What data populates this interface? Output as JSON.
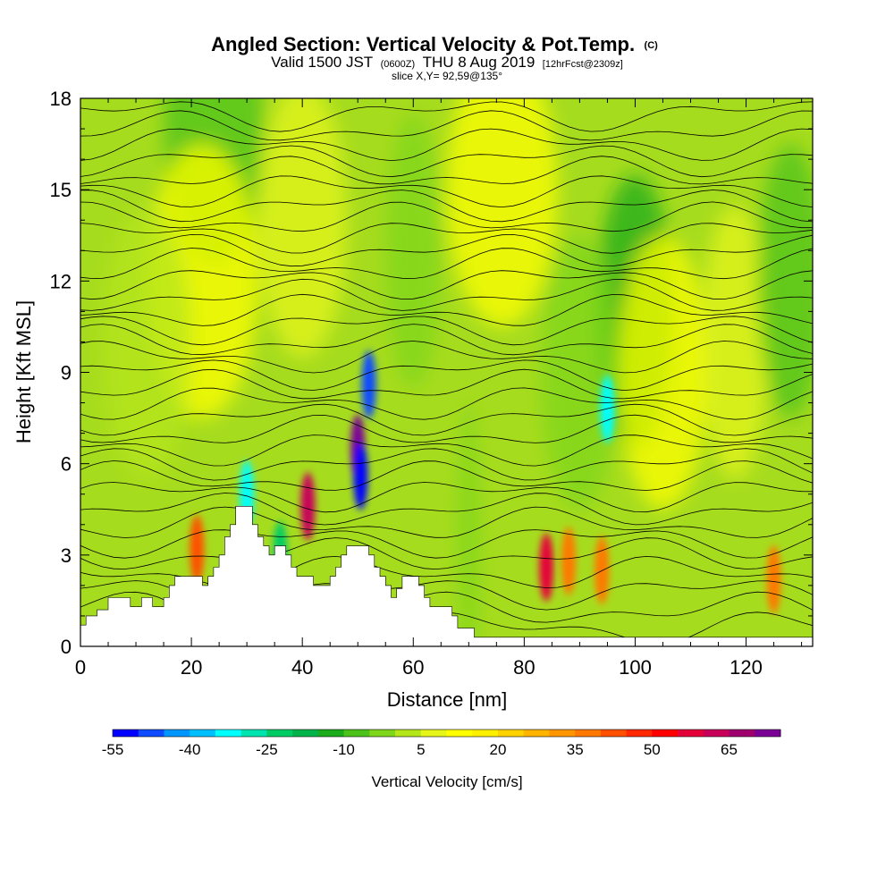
{
  "header": {
    "title": "Angled Section: Vertical Velocity & Pot.Temp.",
    "title_suffix": "(C)",
    "valid_prefix": "Valid 1500 JST",
    "valid_zulu": "(0600Z)",
    "valid_date": "THU 8 Aug 2019",
    "forecast_note": "[12hrFcst@2309z]",
    "slice_info": "slice X,Y= 92,59@135°"
  },
  "chart_data": {
    "type": "heatmap",
    "xlabel": "Distance [nm]",
    "ylabel": "Height [Kft MSL]",
    "xlim": [
      0,
      132
    ],
    "ylim": [
      0,
      18
    ],
    "x_ticks": [
      0,
      20,
      40,
      60,
      80,
      100,
      120
    ],
    "y_ticks": [
      0,
      3,
      6,
      9,
      12,
      15,
      18
    ],
    "grid": false,
    "colorbar": {
      "label": "Vertical Velocity [cm/s]",
      "min": -55,
      "step": 5,
      "tick_labels": [
        "-55",
        "-40",
        "-25",
        "-10",
        "5",
        "20",
        "35",
        "50",
        "65"
      ],
      "colors": [
        "#0000ff",
        "#0f4cff",
        "#0096ff",
        "#00bfff",
        "#00ffff",
        "#00e5b0",
        "#00cc66",
        "#00b44a",
        "#1bab1b",
        "#4cc21a",
        "#7fd61a",
        "#b5e61a",
        "#e6f51a",
        "#ffff00",
        "#fff000",
        "#ffd200",
        "#ffb400",
        "#ff9600",
        "#ff7800",
        "#ff5000",
        "#ff2800",
        "#ff0000",
        "#e6003a",
        "#c8005a",
        "#a0006e",
        "#7a0096"
      ]
    },
    "terrain_kft": [
      [
        0,
        0.7
      ],
      [
        1,
        0.7
      ],
      [
        1,
        1.0
      ],
      [
        3,
        1.0
      ],
      [
        3,
        1.2
      ],
      [
        5,
        1.2
      ],
      [
        5,
        1.6
      ],
      [
        9,
        1.6
      ],
      [
        9,
        1.3
      ],
      [
        11,
        1.3
      ],
      [
        11,
        1.6
      ],
      [
        13,
        1.6
      ],
      [
        13,
        1.3
      ],
      [
        15,
        1.3
      ],
      [
        15,
        1.6
      ],
      [
        16,
        1.6
      ],
      [
        16,
        2.0
      ],
      [
        17,
        2.0
      ],
      [
        17,
        2.3
      ],
      [
        22,
        2.3
      ],
      [
        22,
        2.0
      ],
      [
        23,
        2.0
      ],
      [
        23,
        2.3
      ],
      [
        24,
        2.3
      ],
      [
        24,
        2.6
      ],
      [
        25,
        2.6
      ],
      [
        25,
        3.0
      ],
      [
        26,
        3.0
      ],
      [
        26,
        3.6
      ],
      [
        27,
        3.6
      ],
      [
        27,
        4.0
      ],
      [
        28,
        4.0
      ],
      [
        28,
        4.6
      ],
      [
        31,
        4.6
      ],
      [
        31,
        4.0
      ],
      [
        32,
        4.0
      ],
      [
        32,
        3.6
      ],
      [
        33,
        3.6
      ],
      [
        33,
        3.3
      ],
      [
        34,
        3.3
      ],
      [
        34,
        3.0
      ],
      [
        35,
        3.0
      ],
      [
        35,
        3.3
      ],
      [
        37,
        3.3
      ],
      [
        37,
        3.0
      ],
      [
        38,
        3.0
      ],
      [
        38,
        2.6
      ],
      [
        39,
        2.6
      ],
      [
        39,
        2.3
      ],
      [
        42,
        2.3
      ],
      [
        42,
        2.0
      ],
      [
        45,
        2.0
      ],
      [
        45,
        2.3
      ],
      [
        46,
        2.3
      ],
      [
        46,
        2.6
      ],
      [
        47,
        2.6
      ],
      [
        47,
        3.0
      ],
      [
        48,
        3.0
      ],
      [
        48,
        3.3
      ],
      [
        52,
        3.3
      ],
      [
        52,
        3.0
      ],
      [
        53,
        3.0
      ],
      [
        53,
        2.6
      ],
      [
        54,
        2.6
      ],
      [
        54,
        2.3
      ],
      [
        55,
        2.3
      ],
      [
        55,
        2.0
      ],
      [
        56,
        2.0
      ],
      [
        56,
        1.6
      ],
      [
        57,
        1.6
      ],
      [
        57,
        1.9
      ],
      [
        58,
        1.9
      ],
      [
        58,
        2.3
      ],
      [
        61,
        2.3
      ],
      [
        61,
        2.0
      ],
      [
        62,
        2.0
      ],
      [
        62,
        1.6
      ],
      [
        63,
        1.6
      ],
      [
        63,
        1.3
      ],
      [
        67,
        1.3
      ],
      [
        67,
        1.0
      ],
      [
        68,
        1.0
      ],
      [
        68,
        0.6
      ],
      [
        71,
        0.6
      ],
      [
        71,
        0.3
      ],
      [
        132,
        0.3
      ]
    ],
    "theta_contours_kft": [
      0.6,
      1.2,
      1.8,
      2.4,
      3.0,
      3.5,
      4.0,
      4.5,
      5.0,
      5.5,
      6.0,
      6.5,
      7.0,
      7.5,
      8.0,
      8.5,
      9.0,
      9.5,
      10.0,
      10.5,
      11.0,
      11.5,
      12.0,
      12.5,
      13.0,
      13.5,
      14.0,
      14.5,
      15.0,
      15.5,
      16.0,
      16.5,
      17.0,
      17.5
    ],
    "velocity_features": [
      {
        "x": 21,
        "z": 3.2,
        "w": 40
      },
      {
        "x": 41,
        "z": 4.6,
        "w": 60
      },
      {
        "x": 50,
        "z": 6.5,
        "w": 75
      },
      {
        "x": 50.5,
        "z": 5.6,
        "w": -55
      },
      {
        "x": 52,
        "z": 8.6,
        "w": -50
      },
      {
        "x": 84,
        "z": 2.6,
        "w": 55
      },
      {
        "x": 88,
        "z": 2.8,
        "w": 35
      },
      {
        "x": 94,
        "z": 2.5,
        "w": 35
      },
      {
        "x": 95,
        "z": 7.8,
        "w": -35
      },
      {
        "x": 125,
        "z": 2.2,
        "w": 35
      },
      {
        "x": 36,
        "z": 3.0,
        "w": -25
      },
      {
        "x": 30,
        "z": 5.0,
        "w": -35
      }
    ]
  }
}
